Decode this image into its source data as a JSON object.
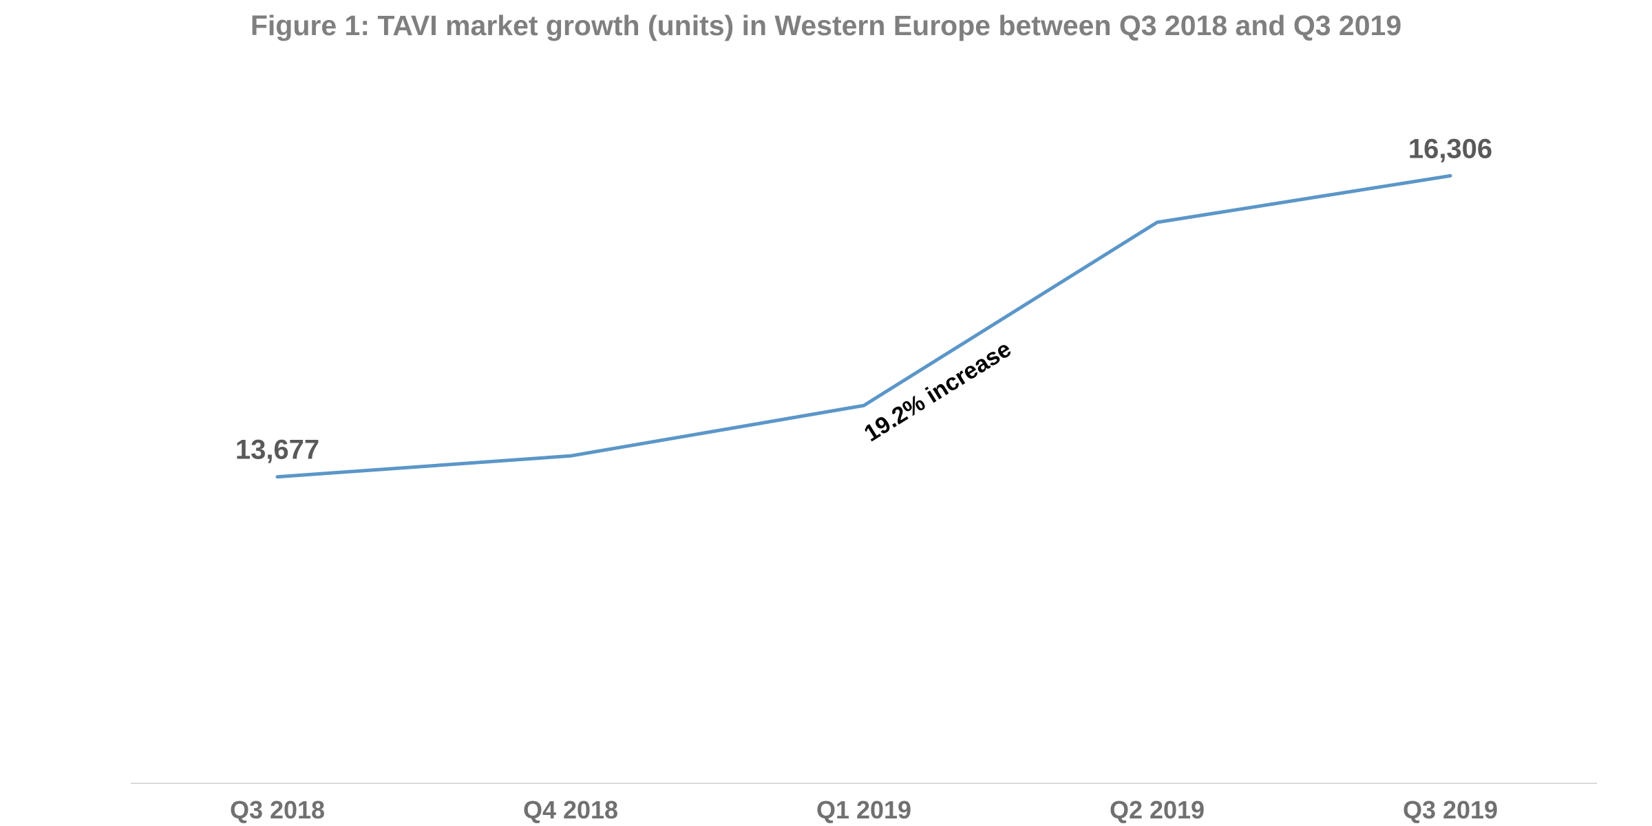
{
  "chart_data": {
    "type": "line",
    "title": "Figure 1: TAVI market growth (units) in Western Europe between Q3 2018 and Q3 2019",
    "categories": [
      "Q3 2018",
      "Q4 2018",
      "Q1 2019",
      "Q2 2019",
      "Q3 2019"
    ],
    "series": [
      {
        "values": [
          13677,
          13860,
          14300,
          15900,
          16306
        ]
      }
    ],
    "data_labels": [
      {
        "index": 0,
        "text": "13,677"
      },
      {
        "index": 4,
        "text": "16,306"
      }
    ],
    "annotation": {
      "text": "19.2% increase",
      "between": [
        "Q1 2019",
        "Q2 2019"
      ]
    },
    "ylim": [
      11000,
      17000
    ],
    "grid": false,
    "y_axis_visible": false,
    "colors": {
      "line": "#5b96c8",
      "title": "#7f7f7f",
      "tick": "#707070",
      "data_label": "#595959",
      "annotation": "#000000",
      "axis": "#d9d9d9"
    }
  }
}
